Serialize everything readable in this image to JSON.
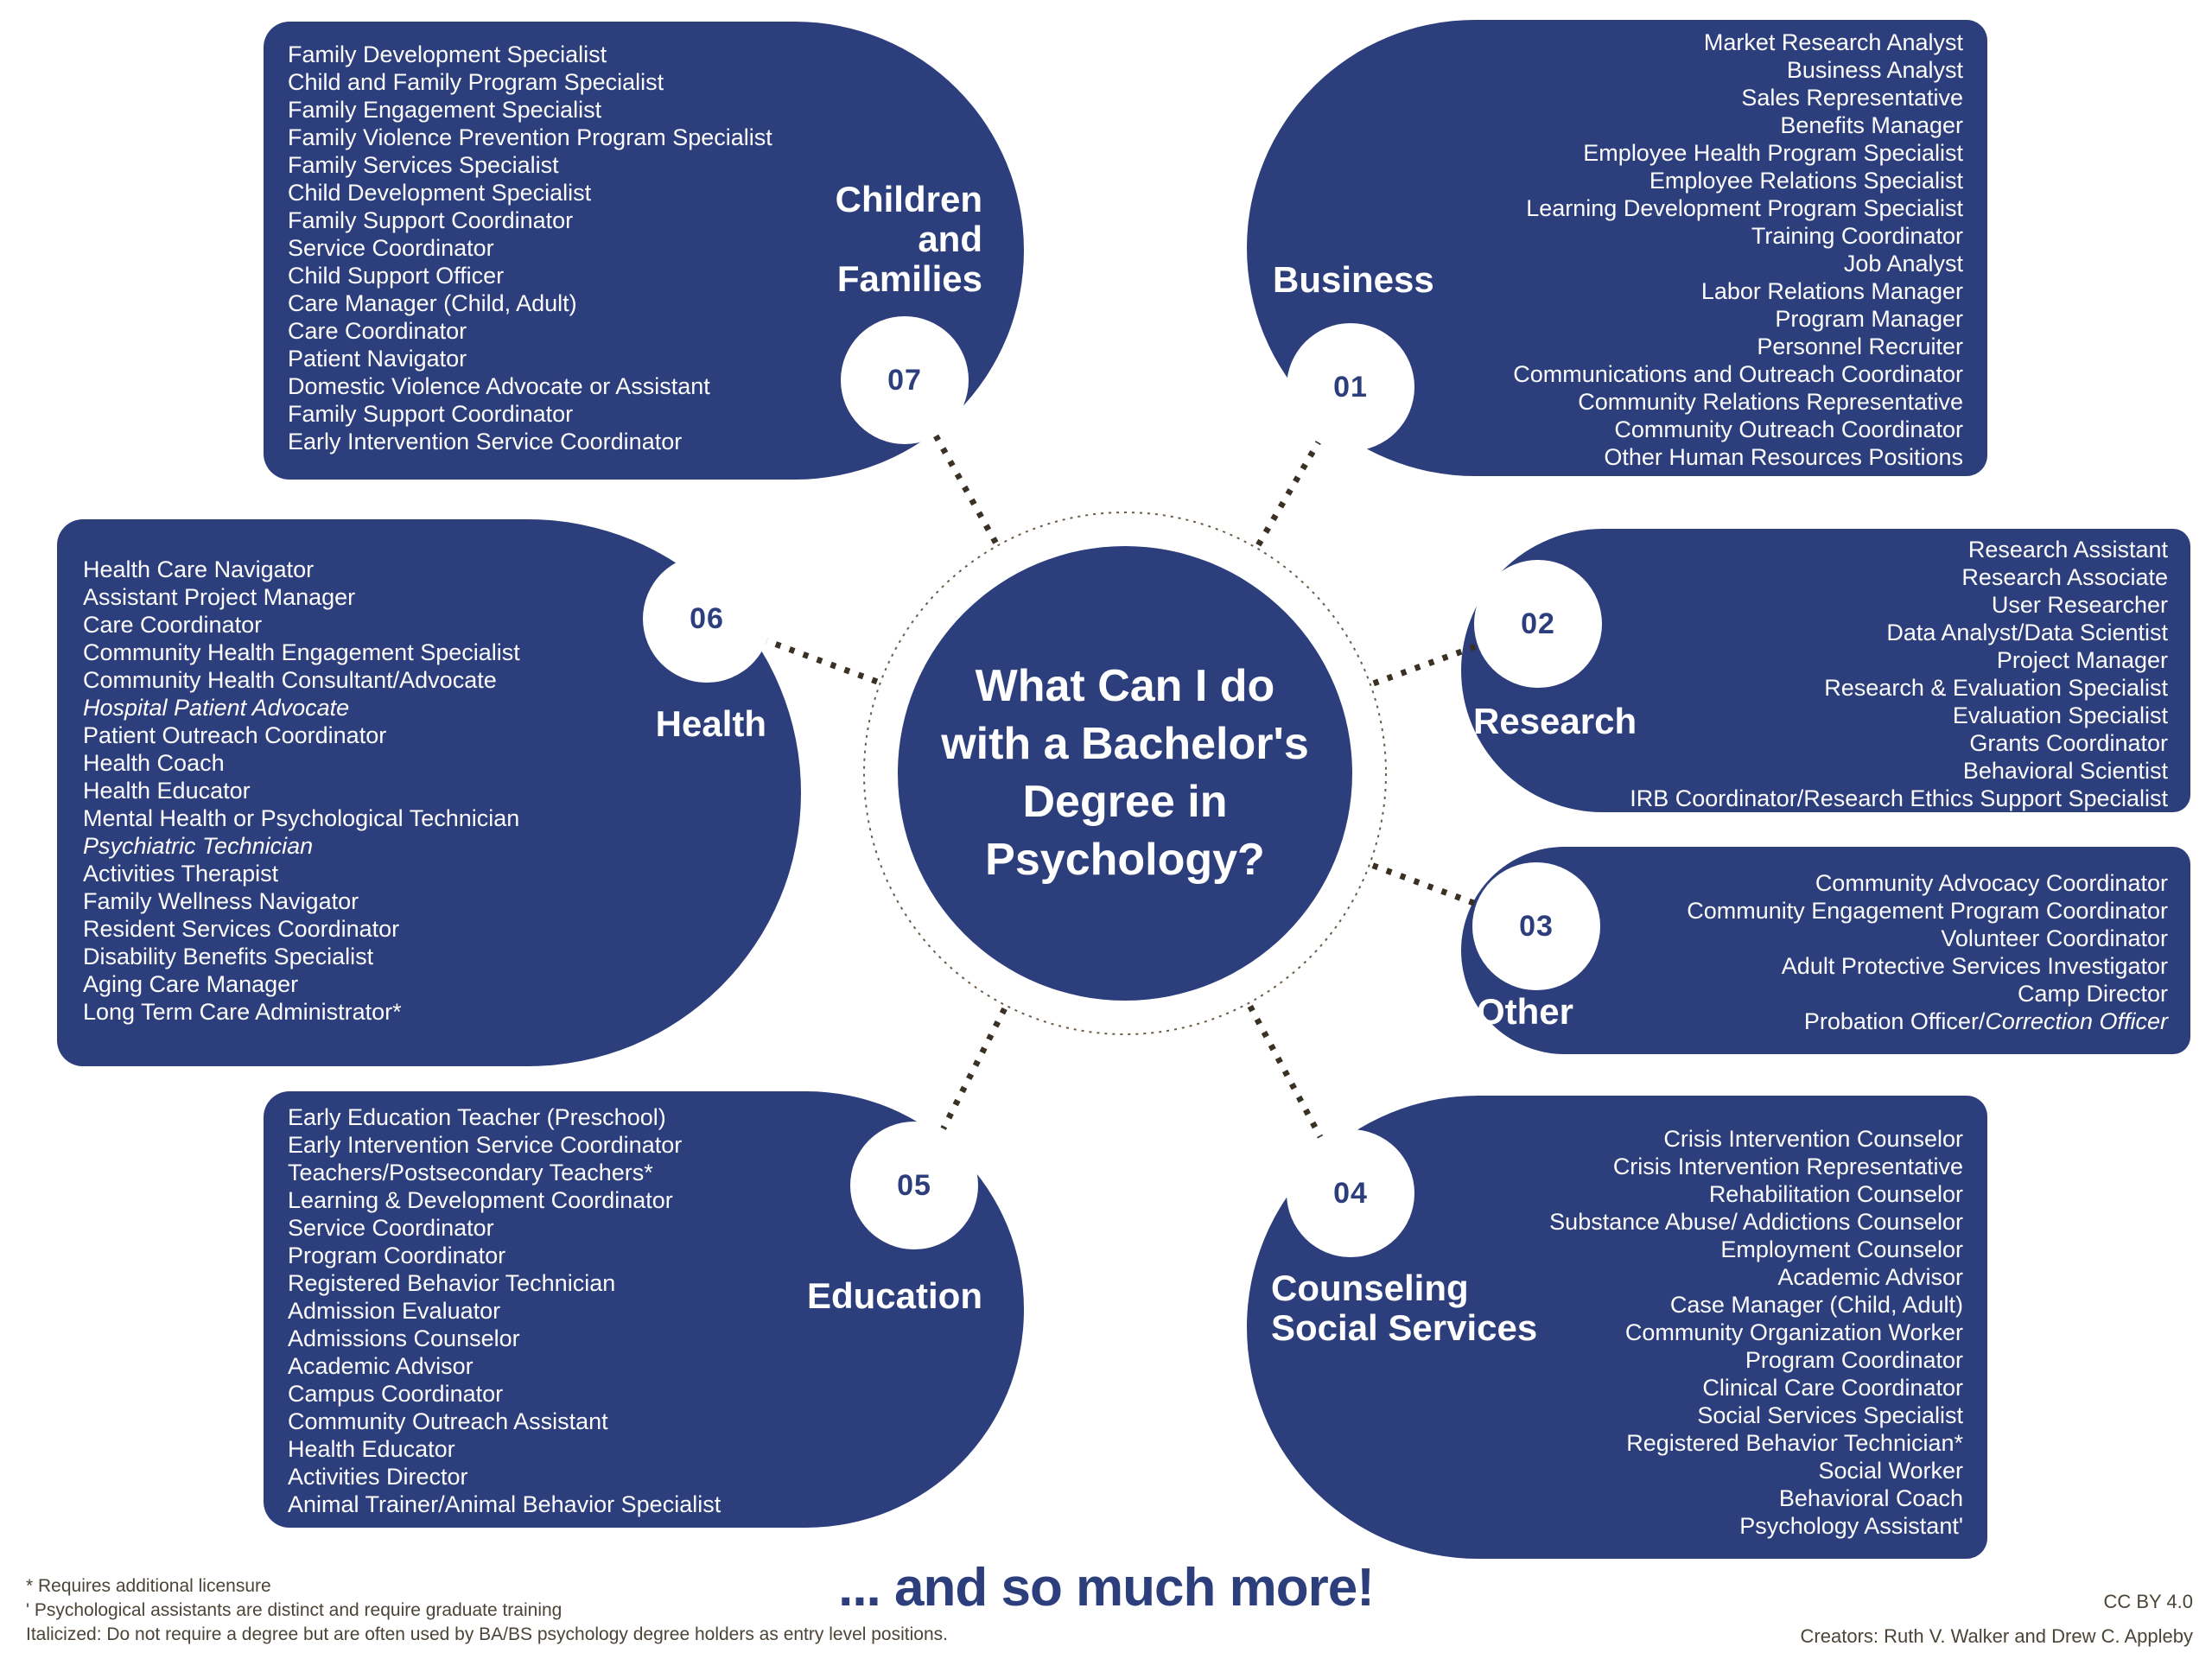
{
  "center": {
    "title": "What Can I do\nwith a Bachelor's\nDegree in\nPsychology?"
  },
  "categories": [
    {
      "id": "business",
      "number": "01",
      "label": "Business",
      "items": [
        "Market Research Analyst",
        "Business Analyst",
        "Sales Representative",
        "Benefits Manager",
        "Employee Health Program Specialist",
        "Employee Relations Specialist",
        "Learning Development Program Specialist",
        "Training Coordinator",
        "Job Analyst",
        "Labor Relations Manager",
        "Program Manager",
        "Personnel Recruiter",
        "Communications and Outreach Coordinator",
        "Community Relations Representative",
        "Community Outreach Coordinator",
        "Other Human Resources Positions"
      ]
    },
    {
      "id": "research",
      "number": "02",
      "label": "Research",
      "items": [
        "Research Assistant",
        "Research Associate",
        "User Researcher",
        "Data Analyst/Data Scientist",
        "Project Manager",
        "Research & Evaluation Specialist",
        "Evaluation Specialist",
        "Grants Coordinator",
        "Behavioral Scientist",
        "IRB Coordinator/Research Ethics Support Specialist"
      ]
    },
    {
      "id": "other",
      "number": "03",
      "label": "Other",
      "items": [
        "Community Advocacy Coordinator",
        "Community Engagement Program Coordinator",
        "Volunteer Coordinator",
        "Adult Protective Services Investigator",
        "Camp Director",
        [
          [
            "Probation Officer/",
            false
          ],
          [
            "Correction Officer",
            true
          ]
        ]
      ]
    },
    {
      "id": "counseling",
      "number": "04",
      "label": "Counseling\nSocial Services",
      "items": [
        "Crisis Intervention Counselor",
        "Crisis Intervention Representative",
        "Rehabilitation Counselor",
        "Substance Abuse/ Addictions Counselor",
        "Employment Counselor",
        "Academic Advisor",
        "Case Manager (Child, Adult)",
        "Community Organization Worker",
        "Program Coordinator",
        "Clinical Care Coordinator",
        "Social Services Specialist",
        "Registered Behavior Technician*",
        "Social Worker",
        "Behavioral Coach",
        "Psychology Assistant'"
      ]
    },
    {
      "id": "education",
      "number": "05",
      "label": "Education",
      "items": [
        "Early Education Teacher (Preschool)",
        "Early Intervention Service Coordinator",
        "Teachers/Postsecondary Teachers*",
        "Learning & Development Coordinator",
        "Service Coordinator",
        "Program Coordinator",
        "Registered Behavior Technician",
        "Admission Evaluator",
        "Admissions Counselor",
        "Academic Advisor",
        "Campus Coordinator",
        "Community Outreach Assistant",
        "Health Educator",
        "Activities Director",
        "Animal Trainer/Animal Behavior Specialist"
      ]
    },
    {
      "id": "health",
      "number": "06",
      "label": "Health",
      "items": [
        "Health Care Navigator",
        "Assistant Project Manager",
        "Care Coordinator",
        "Community Health Engagement Specialist",
        "Community Health Consultant/Advocate",
        [
          [
            "Hospital Patient Advocate",
            true
          ]
        ],
        "Patient Outreach Coordinator",
        "Health Coach",
        "Health Educator",
        "Mental Health or Psychological Technician",
        [
          [
            "Psychiatric Technician",
            true
          ]
        ],
        "Activities Therapist",
        "Family Wellness Navigator",
        "Resident Services Coordinator",
        "Disability Benefits Specialist",
        "Aging Care Manager",
        "Long Term Care Administrator*"
      ]
    },
    {
      "id": "children",
      "number": "07",
      "label": "Children\nand\nFamilies",
      "items": [
        "Family Development Specialist",
        "Child and Family Program Specialist",
        "Family Engagement Specialist",
        "Family Violence Prevention Program Specialist",
        "Family Services Specialist",
        "Child Development Specialist",
        "Family Support Coordinator",
        "Service Coordinator",
        "Child Support Officer",
        "Care Manager (Child, Adult)",
        "Care Coordinator",
        "Patient Navigator",
        "Domestic Violence Advocate or Assistant",
        "Family Support Coordinator",
        "Early Intervention Service Coordinator"
      ]
    }
  ],
  "footnotes": [
    "* Requires additional licensure",
    "' Psychological assistants are distinct and require graduate training",
    "Italicized: Do not require a degree but are often used by BA/BS psychology degree holders as entry level positions."
  ],
  "more_text": "... and so much more!",
  "license": "CC BY 4.0",
  "creators": "Creators: Ruth V. Walker and Drew C. Appleby",
  "colors": {
    "navy": "#2d3e7c",
    "dot": "#3a3124",
    "ring": "#6b5b45",
    "ink": "#4b4437"
  }
}
